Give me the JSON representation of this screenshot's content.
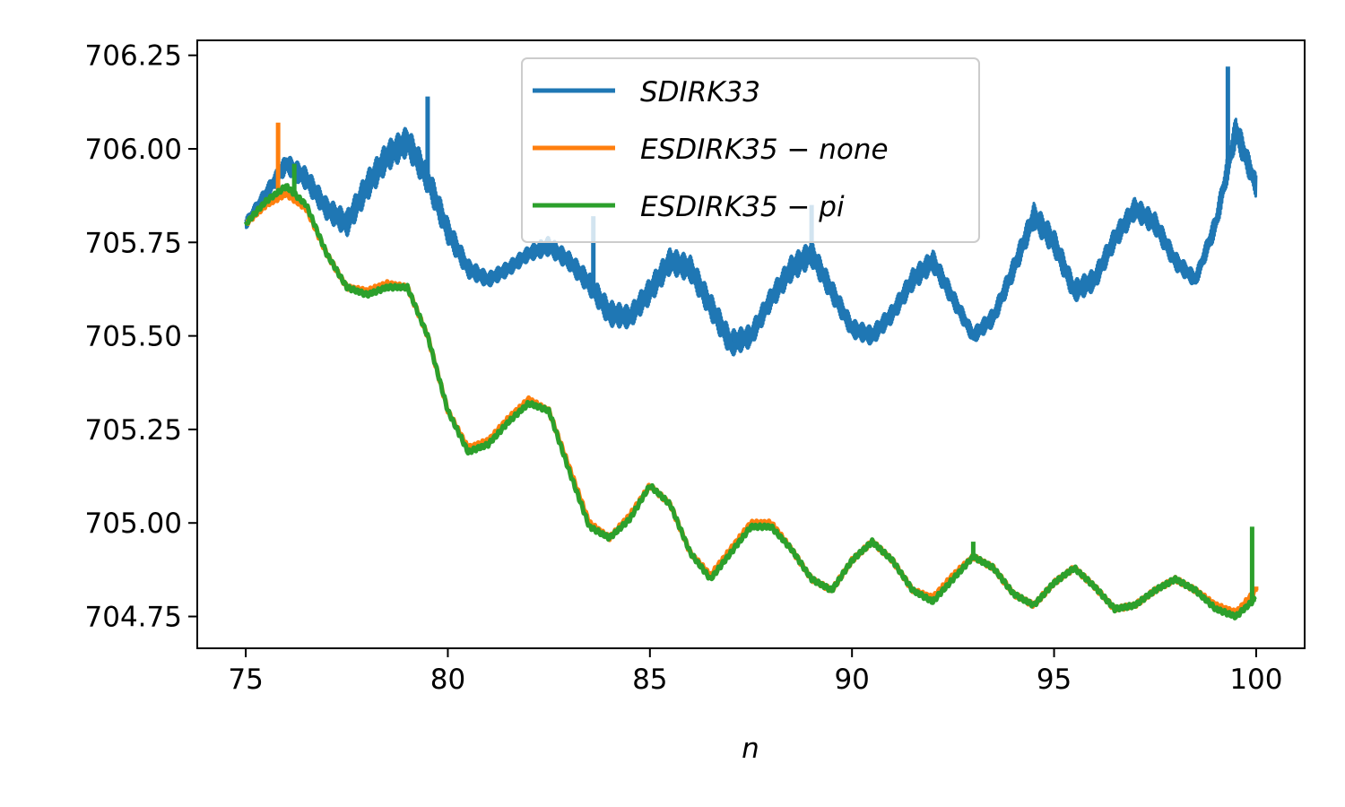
{
  "chart_data": {
    "type": "line",
    "title": "",
    "xlabel": "n",
    "ylabel": "",
    "xlim": [
      73.8,
      101.2
    ],
    "ylim": [
      704.665,
      706.29
    ],
    "xticks": [
      75,
      80,
      85,
      90,
      95,
      100
    ],
    "xtick_labels": [
      "75",
      "80",
      "85",
      "90",
      "95",
      "100"
    ],
    "yticks": [
      704.75,
      705.0,
      705.25,
      705.5,
      705.75,
      706.0,
      706.25
    ],
    "ytick_labels": [
      "704.75",
      "705.00",
      "705.25",
      "705.50",
      "705.75",
      "706.00",
      "706.25"
    ],
    "grid": false,
    "legend_position": "upper-center",
    "series": [
      {
        "name": "SDIRK33 ",
        "label_display": "SDIRK33",
        "color": "#1f77b4",
        "x": [
          75.0,
          75.5,
          76.0,
          76.5,
          77.0,
          77.5,
          78.0,
          78.5,
          79.0,
          79.5,
          80.0,
          80.5,
          81.0,
          81.5,
          82.0,
          82.5,
          83.0,
          83.5,
          84.0,
          84.5,
          85.0,
          85.5,
          86.0,
          86.5,
          87.0,
          87.5,
          88.0,
          88.5,
          89.0,
          89.5,
          90.0,
          90.5,
          91.0,
          91.5,
          92.0,
          92.5,
          93.0,
          93.5,
          94.0,
          94.5,
          95.0,
          95.5,
          96.0,
          96.5,
          97.0,
          97.5,
          98.0,
          98.5,
          99.0,
          99.5,
          100.0
        ],
        "y": [
          705.8,
          705.88,
          705.96,
          705.92,
          705.84,
          705.8,
          705.9,
          705.98,
          706.02,
          705.92,
          705.78,
          705.68,
          705.65,
          705.68,
          705.72,
          705.74,
          705.7,
          705.64,
          705.56,
          705.55,
          705.62,
          705.7,
          705.68,
          705.58,
          705.48,
          705.5,
          705.6,
          705.68,
          705.72,
          705.62,
          705.52,
          705.5,
          705.56,
          705.65,
          705.7,
          705.6,
          705.5,
          705.55,
          705.68,
          705.82,
          705.75,
          705.62,
          705.65,
          705.76,
          705.84,
          705.8,
          705.7,
          705.65,
          705.8,
          706.05,
          705.9
        ],
        "band": [
          0.03,
          0.04,
          0.05,
          0.06,
          0.06,
          0.07,
          0.08,
          0.08,
          0.08,
          0.08,
          0.07,
          0.05,
          0.04,
          0.04,
          0.04,
          0.05,
          0.05,
          0.06,
          0.07,
          0.06,
          0.07,
          0.07,
          0.07,
          0.07,
          0.07,
          0.06,
          0.06,
          0.07,
          0.07,
          0.06,
          0.05,
          0.05,
          0.05,
          0.06,
          0.06,
          0.05,
          0.04,
          0.05,
          0.06,
          0.07,
          0.07,
          0.06,
          0.06,
          0.06,
          0.06,
          0.06,
          0.05,
          0.04,
          0.06,
          0.08,
          0.06
        ],
        "spikes": [
          [
            79.5,
            706.14
          ],
          [
            83.6,
            705.82
          ],
          [
            87.1,
            705.5
          ],
          [
            89.0,
            705.85
          ],
          [
            99.3,
            706.22
          ]
        ]
      },
      {
        "name": "ESDIRK35 − none",
        "color": "#ff7f0e",
        "x": [
          75.0,
          75.5,
          76.0,
          76.5,
          77.0,
          77.5,
          78.0,
          78.5,
          79.0,
          79.5,
          80.0,
          80.5,
          81.0,
          81.5,
          82.0,
          82.5,
          83.0,
          83.5,
          84.0,
          84.5,
          85.0,
          85.5,
          86.0,
          86.5,
          87.0,
          87.5,
          88.0,
          88.5,
          89.0,
          89.5,
          90.0,
          90.5,
          91.0,
          91.5,
          92.0,
          92.5,
          93.0,
          93.5,
          94.0,
          94.5,
          95.0,
          95.5,
          96.0,
          96.5,
          97.0,
          97.5,
          98.0,
          98.5,
          99.0,
          99.5,
          100.0
        ],
        "y": [
          705.8,
          705.85,
          705.88,
          705.84,
          705.72,
          705.63,
          705.62,
          705.64,
          705.63,
          705.5,
          705.3,
          705.2,
          705.22,
          705.28,
          705.33,
          705.3,
          705.15,
          705.0,
          704.96,
          705.02,
          705.1,
          705.05,
          704.92,
          704.86,
          704.93,
          705.0,
          705.0,
          704.93,
          704.85,
          704.82,
          704.9,
          704.95,
          704.9,
          704.82,
          704.8,
          704.86,
          704.91,
          704.88,
          704.81,
          704.78,
          704.84,
          704.88,
          704.83,
          704.77,
          704.78,
          704.82,
          704.85,
          704.82,
          704.78,
          704.76,
          704.82
        ],
        "spikes": [
          [
            75.8,
            706.07
          ],
          [
            100.0,
            704.83
          ]
        ]
      },
      {
        "name": "ESDIRK35 − pi",
        "color": "#2ca02c",
        "x": [
          75.0,
          75.5,
          76.0,
          76.5,
          77.0,
          77.5,
          78.0,
          78.5,
          79.0,
          79.5,
          80.0,
          80.5,
          81.0,
          81.5,
          82.0,
          82.5,
          83.0,
          83.5,
          84.0,
          84.5,
          85.0,
          85.5,
          86.0,
          86.5,
          87.0,
          87.5,
          88.0,
          88.5,
          89.0,
          89.5,
          90.0,
          90.5,
          91.0,
          91.5,
          92.0,
          92.5,
          93.0,
          93.5,
          94.0,
          94.5,
          95.0,
          95.5,
          96.0,
          96.5,
          97.0,
          97.5,
          98.0,
          98.5,
          99.0,
          99.5,
          100.0
        ],
        "y": [
          705.8,
          705.86,
          705.9,
          705.85,
          705.72,
          705.63,
          705.61,
          705.63,
          705.63,
          705.5,
          705.3,
          705.19,
          705.21,
          705.27,
          705.32,
          705.3,
          705.14,
          704.99,
          704.96,
          705.01,
          705.1,
          705.05,
          704.92,
          704.85,
          704.92,
          704.99,
          704.99,
          704.93,
          704.85,
          704.82,
          704.9,
          704.95,
          704.9,
          704.82,
          704.79,
          704.85,
          704.91,
          704.88,
          704.81,
          704.78,
          704.84,
          704.88,
          704.83,
          704.77,
          704.78,
          704.82,
          704.85,
          704.82,
          704.77,
          704.75,
          704.8
        ],
        "spikes": [
          [
            76.2,
            705.96
          ],
          [
            93.0,
            704.95
          ],
          [
            99.9,
            704.99
          ]
        ]
      }
    ]
  }
}
